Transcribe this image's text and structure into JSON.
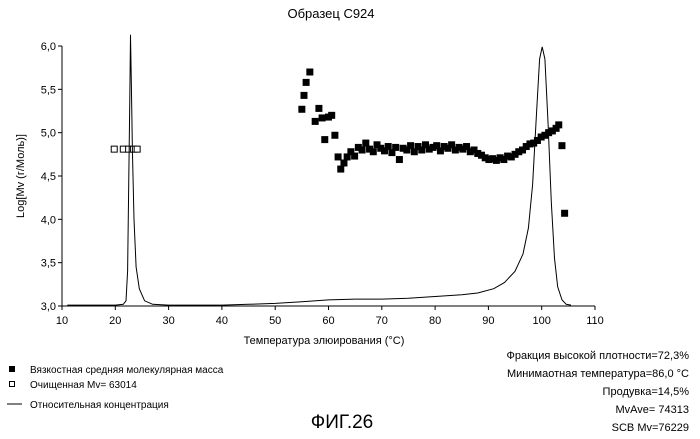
{
  "chart_data": {
    "type": "scatter",
    "title": "Образец С924",
    "xlabel": "Температура элюирования (°C)",
    "ylabel": "Log[Mv (г/Моль)]",
    "xlim": [
      10,
      110
    ],
    "ylim": [
      3.0,
      6.0
    ],
    "x_ticks": [
      10,
      20,
      30,
      40,
      50,
      60,
      70,
      80,
      90,
      100,
      110
    ],
    "x_tick_labels": [
      "10",
      "20",
      "30",
      "40",
      "50",
      "60",
      "70",
      "80",
      "90",
      "100",
      "110"
    ],
    "y_ticks": [
      3.0,
      3.5,
      4.0,
      4.5,
      5.0,
      5.5,
      6.0
    ],
    "y_tick_labels": [
      "3,0",
      "3,5",
      "4,0",
      "4,5",
      "5,0",
      "5,5",
      "6,0"
    ],
    "grid": false,
    "legend_position": "bottom-left",
    "series": [
      {
        "name": "Вязкостная средняя молекулярная масса",
        "marker": "filled-square",
        "points": [
          [
            55.0,
            5.27
          ],
          [
            55.4,
            5.43
          ],
          [
            55.8,
            5.58
          ],
          [
            56.5,
            5.7
          ],
          [
            57.5,
            5.13
          ],
          [
            58.2,
            5.28
          ],
          [
            58.8,
            5.17
          ],
          [
            59.3,
            4.92
          ],
          [
            60.0,
            5.18
          ],
          [
            60.6,
            5.2
          ],
          [
            61.2,
            4.97
          ],
          [
            61.8,
            4.72
          ],
          [
            62.3,
            4.58
          ],
          [
            62.9,
            4.65
          ],
          [
            63.5,
            4.72
          ],
          [
            64.2,
            4.78
          ],
          [
            64.9,
            4.73
          ],
          [
            65.6,
            4.83
          ],
          [
            66.3,
            4.8
          ],
          [
            67.0,
            4.88
          ],
          [
            67.7,
            4.81
          ],
          [
            68.4,
            4.78
          ],
          [
            69.1,
            4.86
          ],
          [
            69.8,
            4.82
          ],
          [
            70.5,
            4.79
          ],
          [
            71.2,
            4.84
          ],
          [
            71.9,
            4.77
          ],
          [
            72.6,
            4.83
          ],
          [
            73.3,
            4.69
          ],
          [
            74.0,
            4.82
          ],
          [
            74.7,
            4.8
          ],
          [
            75.4,
            4.85
          ],
          [
            76.1,
            4.78
          ],
          [
            76.8,
            4.84
          ],
          [
            77.5,
            4.8
          ],
          [
            78.2,
            4.86
          ],
          [
            78.9,
            4.81
          ],
          [
            79.6,
            4.83
          ],
          [
            80.3,
            4.85
          ],
          [
            81.0,
            4.79
          ],
          [
            81.7,
            4.84
          ],
          [
            82.4,
            4.82
          ],
          [
            83.1,
            4.86
          ],
          [
            83.8,
            4.8
          ],
          [
            84.5,
            4.83
          ],
          [
            85.2,
            4.81
          ],
          [
            85.9,
            4.84
          ],
          [
            86.6,
            4.78
          ],
          [
            87.3,
            4.8
          ],
          [
            88.0,
            4.76
          ],
          [
            88.7,
            4.74
          ],
          [
            89.4,
            4.71
          ],
          [
            90.1,
            4.69
          ],
          [
            90.8,
            4.7
          ],
          [
            91.5,
            4.68
          ],
          [
            92.2,
            4.71
          ],
          [
            92.9,
            4.69
          ],
          [
            93.6,
            4.73
          ],
          [
            94.3,
            4.72
          ],
          [
            95.0,
            4.75
          ],
          [
            95.7,
            4.78
          ],
          [
            96.4,
            4.8
          ],
          [
            97.1,
            4.84
          ],
          [
            97.8,
            4.87
          ],
          [
            98.5,
            4.88
          ],
          [
            99.2,
            4.91
          ],
          [
            99.9,
            4.95
          ],
          [
            100.6,
            4.97
          ],
          [
            101.3,
            5.0
          ],
          [
            102.0,
            5.02
          ],
          [
            102.7,
            5.05
          ],
          [
            103.2,
            5.09
          ],
          [
            103.8,
            4.85
          ],
          [
            104.3,
            4.07
          ]
        ]
      },
      {
        "name": "Очищенная Mv= 63014",
        "marker": "open-square",
        "points": [
          [
            19.8,
            4.81
          ],
          [
            21.5,
            4.81
          ],
          [
            22.5,
            4.81
          ],
          [
            23.4,
            4.81
          ],
          [
            24.1,
            4.81
          ]
        ]
      },
      {
        "name": "Относительная концентрация",
        "marker": "line",
        "points": [
          [
            11.0,
            3.01
          ],
          [
            16.0,
            3.01
          ],
          [
            20.0,
            3.01
          ],
          [
            21.5,
            3.02
          ],
          [
            22.0,
            3.06
          ],
          [
            22.3,
            3.4
          ],
          [
            22.5,
            4.3
          ],
          [
            22.7,
            5.3
          ],
          [
            22.85,
            6.13
          ],
          [
            23.0,
            5.6
          ],
          [
            23.2,
            4.8
          ],
          [
            23.5,
            4.0
          ],
          [
            23.9,
            3.45
          ],
          [
            24.5,
            3.2
          ],
          [
            25.5,
            3.06
          ],
          [
            27.0,
            3.02
          ],
          [
            30.0,
            3.01
          ],
          [
            40.0,
            3.01
          ],
          [
            45.0,
            3.02
          ],
          [
            50.0,
            3.03
          ],
          [
            55.0,
            3.05
          ],
          [
            60.0,
            3.07
          ],
          [
            65.0,
            3.08
          ],
          [
            70.0,
            3.08
          ],
          [
            75.0,
            3.09
          ],
          [
            80.0,
            3.11
          ],
          [
            85.0,
            3.13
          ],
          [
            88.0,
            3.15
          ],
          [
            91.0,
            3.2
          ],
          [
            93.0,
            3.27
          ],
          [
            95.0,
            3.4
          ],
          [
            96.5,
            3.6
          ],
          [
            97.5,
            3.9
          ],
          [
            98.3,
            4.4
          ],
          [
            99.0,
            5.2
          ],
          [
            99.6,
            5.85
          ],
          [
            100.1,
            5.99
          ],
          [
            100.6,
            5.85
          ],
          [
            101.2,
            5.1
          ],
          [
            101.8,
            4.2
          ],
          [
            102.4,
            3.55
          ],
          [
            103.0,
            3.22
          ],
          [
            103.8,
            3.07
          ],
          [
            104.6,
            3.02
          ],
          [
            105.5,
            3.01
          ]
        ]
      }
    ]
  },
  "stats": {
    "high_density_fraction": "Фракция высокой плотности=72,3%",
    "min_temperature": "Минимаотная температура=86,0 °C",
    "purge": "Продувка=14,5%",
    "mv_ave": "MvAve= 74313",
    "scb_mv": "SCB Mv=76229"
  },
  "figure_label": "ФИГ.26"
}
